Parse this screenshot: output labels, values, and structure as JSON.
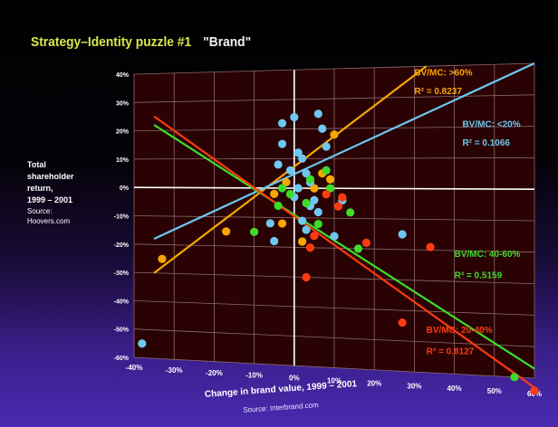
{
  "slide": {
    "title": "Strategy–Identity puzzle #1",
    "title_quote": "\"Brand\"",
    "ylabel_lines": [
      "Total",
      "shareholder",
      "return,",
      "1999 – 2001"
    ],
    "ylabel_source_lines": [
      "Source:",
      "Hoovers.com"
    ],
    "xlabel": "Change in brand value, 1999 – 2001",
    "xsource": "Source: Interbrand.com"
  },
  "colors": {
    "plot_bg": "#2a0204",
    "grid": "#8c6a6a",
    "axis": "#ffffff",
    "tick_text": "#ffffff",
    "orange": "#f7a800",
    "blue": "#6ec8f0",
    "green": "#3ddc2a",
    "red": "#ff3a10"
  },
  "chart_data": {
    "type": "scatter",
    "xlim": [
      -40,
      60
    ],
    "ylim": [
      -60,
      40
    ],
    "x_ticks": [
      "-40%",
      "-30%",
      "-20%",
      "-10%",
      "0%",
      "10%",
      "20%",
      "30%",
      "40%",
      "50%",
      "60%"
    ],
    "y_ticks": [
      "40%",
      "30%",
      "20%",
      "10%",
      "0%",
      "-10%",
      "-20%",
      "-30%",
      "-40%",
      "-50%",
      "-60%"
    ],
    "grid": true,
    "series": [
      {
        "name": "BV/MC: >60%",
        "r2_label": "R² = 0.8237",
        "color": "#f7a800",
        "points": [
          [
            -33,
            -25
          ],
          [
            -17,
            -15
          ],
          [
            -5,
            -2
          ],
          [
            -3,
            -12
          ],
          [
            -2,
            2
          ],
          [
            5,
            0
          ],
          [
            7,
            5
          ],
          [
            9,
            3
          ],
          [
            10,
            18
          ],
          [
            2,
            -18
          ]
        ],
        "line": [
          [
            -35,
            -30
          ],
          [
            33,
            40
          ]
        ]
      },
      {
        "name": "BV/MC: <20%",
        "r2_label": "R² = 0.1066",
        "color": "#6ec8f0",
        "points": [
          [
            -38,
            -55
          ],
          [
            -6,
            -12
          ],
          [
            -5,
            -18
          ],
          [
            -4,
            8
          ],
          [
            -3,
            15
          ],
          [
            -3,
            22
          ],
          [
            0,
            24
          ],
          [
            1,
            12
          ],
          [
            2,
            10
          ],
          [
            3,
            5
          ],
          [
            4,
            2
          ],
          [
            5,
            -4
          ],
          [
            6,
            25
          ],
          [
            7,
            20
          ],
          [
            8,
            14
          ],
          [
            6,
            -8
          ],
          [
            2,
            -11
          ],
          [
            3,
            -14
          ],
          [
            4,
            -6
          ],
          [
            10,
            -16
          ],
          [
            12,
            -4
          ],
          [
            27,
            -15
          ],
          [
            0,
            -3
          ],
          [
            1,
            0
          ],
          [
            -1,
            6
          ]
        ],
        "line": [
          [
            -35,
            -18
          ],
          [
            60,
            40
          ]
        ]
      },
      {
        "name": "BV/MC: 40-60%",
        "r2_label": "R² = 0.5159",
        "color": "#3ddc2a",
        "points": [
          [
            -10,
            -15
          ],
          [
            -4,
            -6
          ],
          [
            -3,
            0
          ],
          [
            -1,
            -2
          ],
          [
            3,
            -5
          ],
          [
            4,
            3
          ],
          [
            6,
            -12
          ],
          [
            8,
            6
          ],
          [
            14,
            -8
          ],
          [
            16,
            -20
          ],
          [
            55,
            -60
          ],
          [
            9,
            0
          ]
        ],
        "line": [
          [
            -35,
            22
          ],
          [
            60,
            -57
          ]
        ]
      },
      {
        "name": "BV/MC: 20-40%",
        "r2_label": "R² = 0.8127",
        "color": "#ff3a10",
        "points": [
          [
            4,
            -20
          ],
          [
            5,
            -16
          ],
          [
            3,
            -30
          ],
          [
            8,
            -2
          ],
          [
            12,
            -3
          ],
          [
            18,
            -18
          ],
          [
            27,
            -44
          ],
          [
            34,
            -19
          ],
          [
            60,
            -64
          ],
          [
            11,
            -6
          ]
        ],
        "line": [
          [
            -35,
            25
          ],
          [
            60,
            -63
          ]
        ]
      }
    ]
  }
}
